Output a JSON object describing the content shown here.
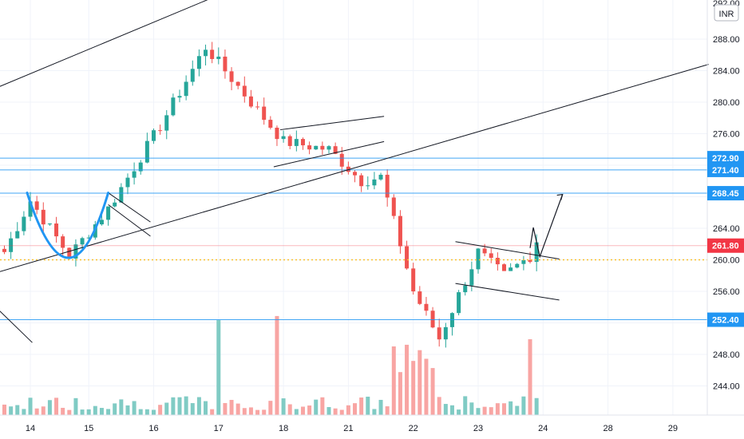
{
  "currency": "INR",
  "chart_data": {
    "type": "candlestick",
    "currency": "INR",
    "y_ticks": [
      244,
      248,
      252,
      256,
      260,
      264,
      268,
      272,
      276,
      280,
      284,
      288
    ],
    "y_tick_labels": [
      "244.00",
      "248.00",
      "252.00",
      "256.00",
      "260.00",
      "264.00",
      "268.00",
      "272.00",
      "276.00",
      "280.00",
      "284.00",
      "288.00"
    ],
    "top_partial_label": "292.00",
    "x_ticks": [
      {
        "label": "14",
        "bar": 4
      },
      {
        "label": "15",
        "bar": 13
      },
      {
        "label": "16",
        "bar": 23
      },
      {
        "label": "17",
        "bar": 33
      },
      {
        "label": "18",
        "bar": 43
      },
      {
        "label": "21",
        "bar": 53
      },
      {
        "label": "22",
        "bar": 63
      },
      {
        "label": "23",
        "bar": 73
      },
      {
        "label": "24",
        "bar": 83
      },
      {
        "label": "28",
        "bar": 93
      },
      {
        "label": "29",
        "bar": 103
      }
    ],
    "horizontal_levels": [
      {
        "value": 272.9,
        "label": "272.90",
        "color": "#2196f3"
      },
      {
        "value": 271.4,
        "label": "271.40",
        "color": "#2196f3"
      },
      {
        "value": 268.45,
        "label": "268.45",
        "color": "#2196f3"
      },
      {
        "value": 261.8,
        "label": "261.80",
        "color": "#f23645"
      },
      {
        "value": 252.4,
        "label": "252.40",
        "color": "#2196f3"
      }
    ],
    "dotted_level": 260.0,
    "key_closes": [
      {
        "bar": 0,
        "value": 261.0
      },
      {
        "bar": 4,
        "value": 267.5
      },
      {
        "bar": 10,
        "value": 260.5
      },
      {
        "bar": 16,
        "value": 266.5
      },
      {
        "bar": 24,
        "value": 277.0
      },
      {
        "bar": 31,
        "value": 287.0
      },
      {
        "bar": 35,
        "value": 283.0
      },
      {
        "bar": 43,
        "value": 275.0
      },
      {
        "bar": 50,
        "value": 274.0
      },
      {
        "bar": 55,
        "value": 270.0
      },
      {
        "bar": 58,
        "value": 270.5
      },
      {
        "bar": 61,
        "value": 262.0
      },
      {
        "bar": 63,
        "value": 256.0
      },
      {
        "bar": 67,
        "value": 250.0
      },
      {
        "bar": 73,
        "value": 261.0
      },
      {
        "bar": 77,
        "value": 258.0
      },
      {
        "bar": 81,
        "value": 260.5
      },
      {
        "bar": 82,
        "value": 262.5
      }
    ],
    "colors": {
      "up": "#26a69a",
      "down": "#ef5350",
      "up_volume": "#80cbc4",
      "down_volume": "#f8a5a3"
    }
  }
}
